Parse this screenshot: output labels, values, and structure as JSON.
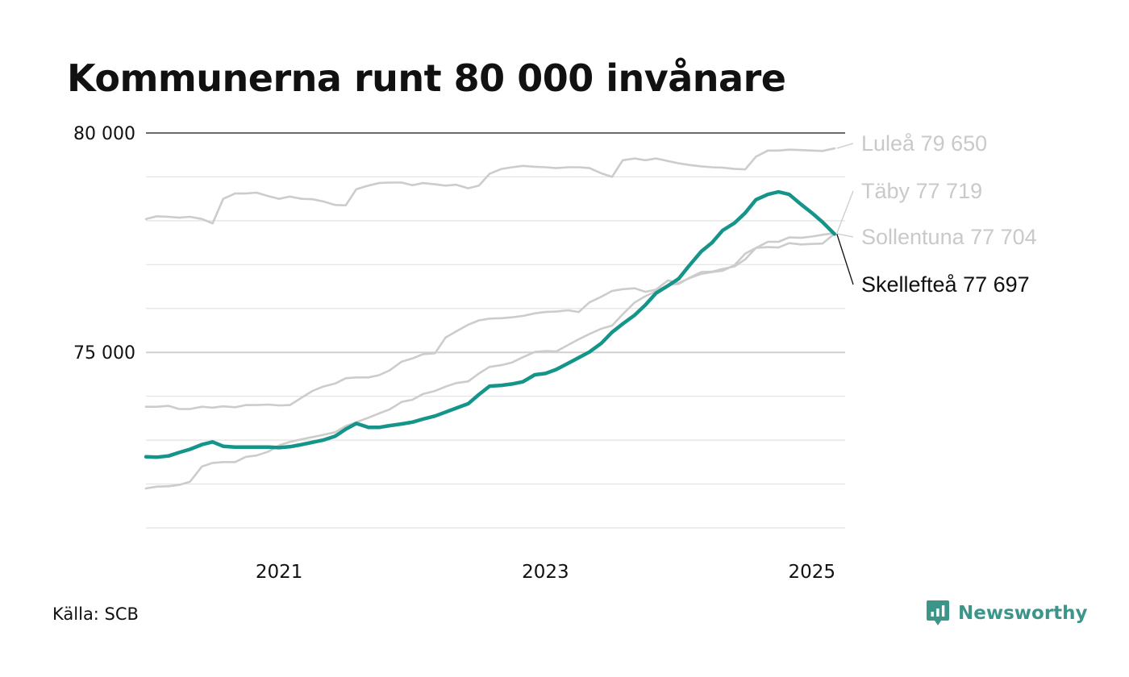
{
  "title": "Kommunerna runt 80 000 invånare",
  "source": "Källa: SCB",
  "brand": {
    "name": "Newsworthy",
    "icon": "newsworthy-logo-icon",
    "color": "#3b9689"
  },
  "chart_data": {
    "type": "line",
    "title": "Kommunerna runt 80 000 invånare",
    "xlabel": "",
    "ylabel": "",
    "xlim": [
      2020.0,
      2025.25
    ],
    "ylim": [
      71000,
      80000
    ],
    "y_ticks": [
      {
        "value": 80000,
        "label": "80 000"
      },
      {
        "value": 75000,
        "label": "75 000"
      }
    ],
    "x_ticks": [
      {
        "value": 2021,
        "label": "2021"
      },
      {
        "value": 2023,
        "label": "2023"
      },
      {
        "value": 2025,
        "label": "2025"
      }
    ],
    "grid": true,
    "series": [
      {
        "name": "Luleå",
        "end_label": "Luleå 79 650",
        "color": "#cccccc",
        "highlight": false,
        "x": [
          2020.0,
          2020.08,
          2020.17,
          2020.25,
          2020.33,
          2020.42,
          2020.5,
          2020.58,
          2020.67,
          2020.75,
          2020.83,
          2020.92,
          2021.0,
          2021.08,
          2021.17,
          2021.25,
          2021.33,
          2021.42,
          2021.5,
          2021.58,
          2021.67,
          2021.75,
          2021.83,
          2021.92,
          2022.0,
          2022.08,
          2022.17,
          2022.25,
          2022.33,
          2022.42,
          2022.5,
          2022.58,
          2022.67,
          2022.75,
          2022.83,
          2022.92,
          2023.0,
          2023.08,
          2023.17,
          2023.25,
          2023.33,
          2023.42,
          2023.5,
          2023.58,
          2023.67,
          2023.75,
          2023.83,
          2023.92,
          2024.0,
          2024.08,
          2024.17,
          2024.25,
          2024.33,
          2024.42,
          2024.5,
          2024.58,
          2024.67,
          2024.75,
          2024.83,
          2024.92,
          2025.0,
          2025.08,
          2025.17
        ],
        "y": [
          78040,
          78100,
          78090,
          78070,
          78090,
          78040,
          77940,
          78500,
          78620,
          78620,
          78640,
          78560,
          78500,
          78550,
          78500,
          78490,
          78440,
          78360,
          78350,
          78720,
          78800,
          78860,
          78870,
          78870,
          78810,
          78860,
          78830,
          78800,
          78820,
          78740,
          78800,
          79070,
          79180,
          79220,
          79250,
          79230,
          79220,
          79200,
          79220,
          79220,
          79200,
          79080,
          79000,
          79380,
          79420,
          79380,
          79420,
          79360,
          79310,
          79270,
          79240,
          79220,
          79210,
          79180,
          79170,
          79460,
          79600,
          79600,
          79620,
          79610,
          79600,
          79590,
          79650
        ]
      },
      {
        "name": "Täby",
        "end_label": "Täby 77 719",
        "color": "#cccccc",
        "highlight": false,
        "x": [
          2020.0,
          2020.08,
          2020.17,
          2020.25,
          2020.33,
          2020.42,
          2020.5,
          2020.58,
          2020.67,
          2020.75,
          2020.83,
          2020.92,
          2021.0,
          2021.08,
          2021.17,
          2021.25,
          2021.33,
          2021.42,
          2021.5,
          2021.58,
          2021.67,
          2021.75,
          2021.83,
          2021.92,
          2022.0,
          2022.08,
          2022.17,
          2022.25,
          2022.33,
          2022.42,
          2022.5,
          2022.58,
          2022.67,
          2022.75,
          2022.83,
          2022.92,
          2023.0,
          2023.08,
          2023.17,
          2023.25,
          2023.33,
          2023.42,
          2023.5,
          2023.58,
          2023.67,
          2023.75,
          2023.83,
          2023.92,
          2024.0,
          2024.08,
          2024.17,
          2024.25,
          2024.33,
          2024.42,
          2024.5,
          2024.58,
          2024.67,
          2024.75,
          2024.83,
          2024.92,
          2025.0,
          2025.08,
          2025.17
        ],
        "y": [
          71900,
          71940,
          71950,
          71980,
          72050,
          72400,
          72480,
          72500,
          72500,
          72620,
          72650,
          72740,
          72880,
          72960,
          73020,
          73070,
          73120,
          73180,
          73320,
          73410,
          73510,
          73610,
          73700,
          73870,
          73920,
          74050,
          74120,
          74220,
          74300,
          74340,
          74520,
          74670,
          74710,
          74770,
          74890,
          75010,
          75030,
          75020,
          75170,
          75300,
          75420,
          75540,
          75610,
          75870,
          76140,
          76280,
          76390,
          76540,
          76560,
          76700,
          76830,
          76840,
          76900,
          76960,
          77120,
          77380,
          77520,
          77520,
          77620,
          77610,
          77640,
          77680,
          77719
        ]
      },
      {
        "name": "Sollentuna",
        "end_label": "Sollentuna 77 704",
        "color": "#cccccc",
        "highlight": false,
        "x": [
          2020.0,
          2020.08,
          2020.17,
          2020.25,
          2020.33,
          2020.42,
          2020.5,
          2020.58,
          2020.67,
          2020.75,
          2020.83,
          2020.92,
          2021.0,
          2021.08,
          2021.17,
          2021.25,
          2021.33,
          2021.42,
          2021.5,
          2021.58,
          2021.67,
          2021.75,
          2021.83,
          2021.92,
          2022.0,
          2022.08,
          2022.17,
          2022.25,
          2022.33,
          2022.42,
          2022.5,
          2022.58,
          2022.67,
          2022.75,
          2022.83,
          2022.92,
          2023.0,
          2023.08,
          2023.17,
          2023.25,
          2023.33,
          2023.42,
          2023.5,
          2023.58,
          2023.67,
          2023.75,
          2023.83,
          2023.92,
          2024.0,
          2024.08,
          2024.17,
          2024.25,
          2024.33,
          2024.42,
          2024.5,
          2024.58,
          2024.67,
          2024.75,
          2024.83,
          2024.92,
          2025.0,
          2025.08,
          2025.17
        ],
        "y": [
          73760,
          73760,
          73780,
          73710,
          73710,
          73760,
          73740,
          73770,
          73750,
          73800,
          73800,
          73810,
          73790,
          73800,
          73970,
          74120,
          74220,
          74290,
          74410,
          74430,
          74430,
          74480,
          74590,
          74790,
          74860,
          74960,
          74980,
          75340,
          75480,
          75630,
          75730,
          75770,
          75780,
          75800,
          75830,
          75890,
          75920,
          75930,
          75960,
          75920,
          76140,
          76270,
          76400,
          76440,
          76460,
          76380,
          76430,
          76640,
          76580,
          76690,
          76790,
          76830,
          76860,
          76990,
          77250,
          77380,
          77400,
          77390,
          77490,
          77460,
          77470,
          77480,
          77704
        ]
      },
      {
        "name": "Skellefteå",
        "end_label": "Skellefteå 77 697",
        "color": "#15958a",
        "highlight": true,
        "x": [
          2020.0,
          2020.08,
          2020.17,
          2020.25,
          2020.33,
          2020.42,
          2020.5,
          2020.58,
          2020.67,
          2020.75,
          2020.83,
          2020.92,
          2021.0,
          2021.08,
          2021.17,
          2021.25,
          2021.33,
          2021.42,
          2021.5,
          2021.58,
          2021.67,
          2021.75,
          2021.83,
          2021.92,
          2022.0,
          2022.08,
          2022.17,
          2022.25,
          2022.33,
          2022.42,
          2022.5,
          2022.58,
          2022.67,
          2022.75,
          2022.83,
          2022.92,
          2023.0,
          2023.08,
          2023.17,
          2023.25,
          2023.33,
          2023.42,
          2023.5,
          2023.58,
          2023.67,
          2023.75,
          2023.83,
          2023.92,
          2024.0,
          2024.08,
          2024.17,
          2024.25,
          2024.33,
          2024.42,
          2024.5,
          2024.58,
          2024.67,
          2024.75,
          2024.83,
          2024.92,
          2025.0,
          2025.08,
          2025.17
        ],
        "y": [
          72620,
          72610,
          72640,
          72720,
          72790,
          72900,
          72960,
          72860,
          72840,
          72840,
          72840,
          72840,
          72830,
          72850,
          72900,
          72950,
          73000,
          73090,
          73250,
          73380,
          73290,
          73290,
          73330,
          73370,
          73410,
          73480,
          73550,
          73640,
          73730,
          73830,
          74040,
          74230,
          74250,
          74280,
          74330,
          74490,
          74520,
          74610,
          74750,
          74880,
          75010,
          75210,
          75460,
          75650,
          75850,
          76080,
          76350,
          76520,
          76680,
          76980,
          77300,
          77500,
          77780,
          77950,
          78180,
          78480,
          78600,
          78660,
          78600,
          78370,
          78180,
          77970,
          77697
        ]
      }
    ]
  }
}
